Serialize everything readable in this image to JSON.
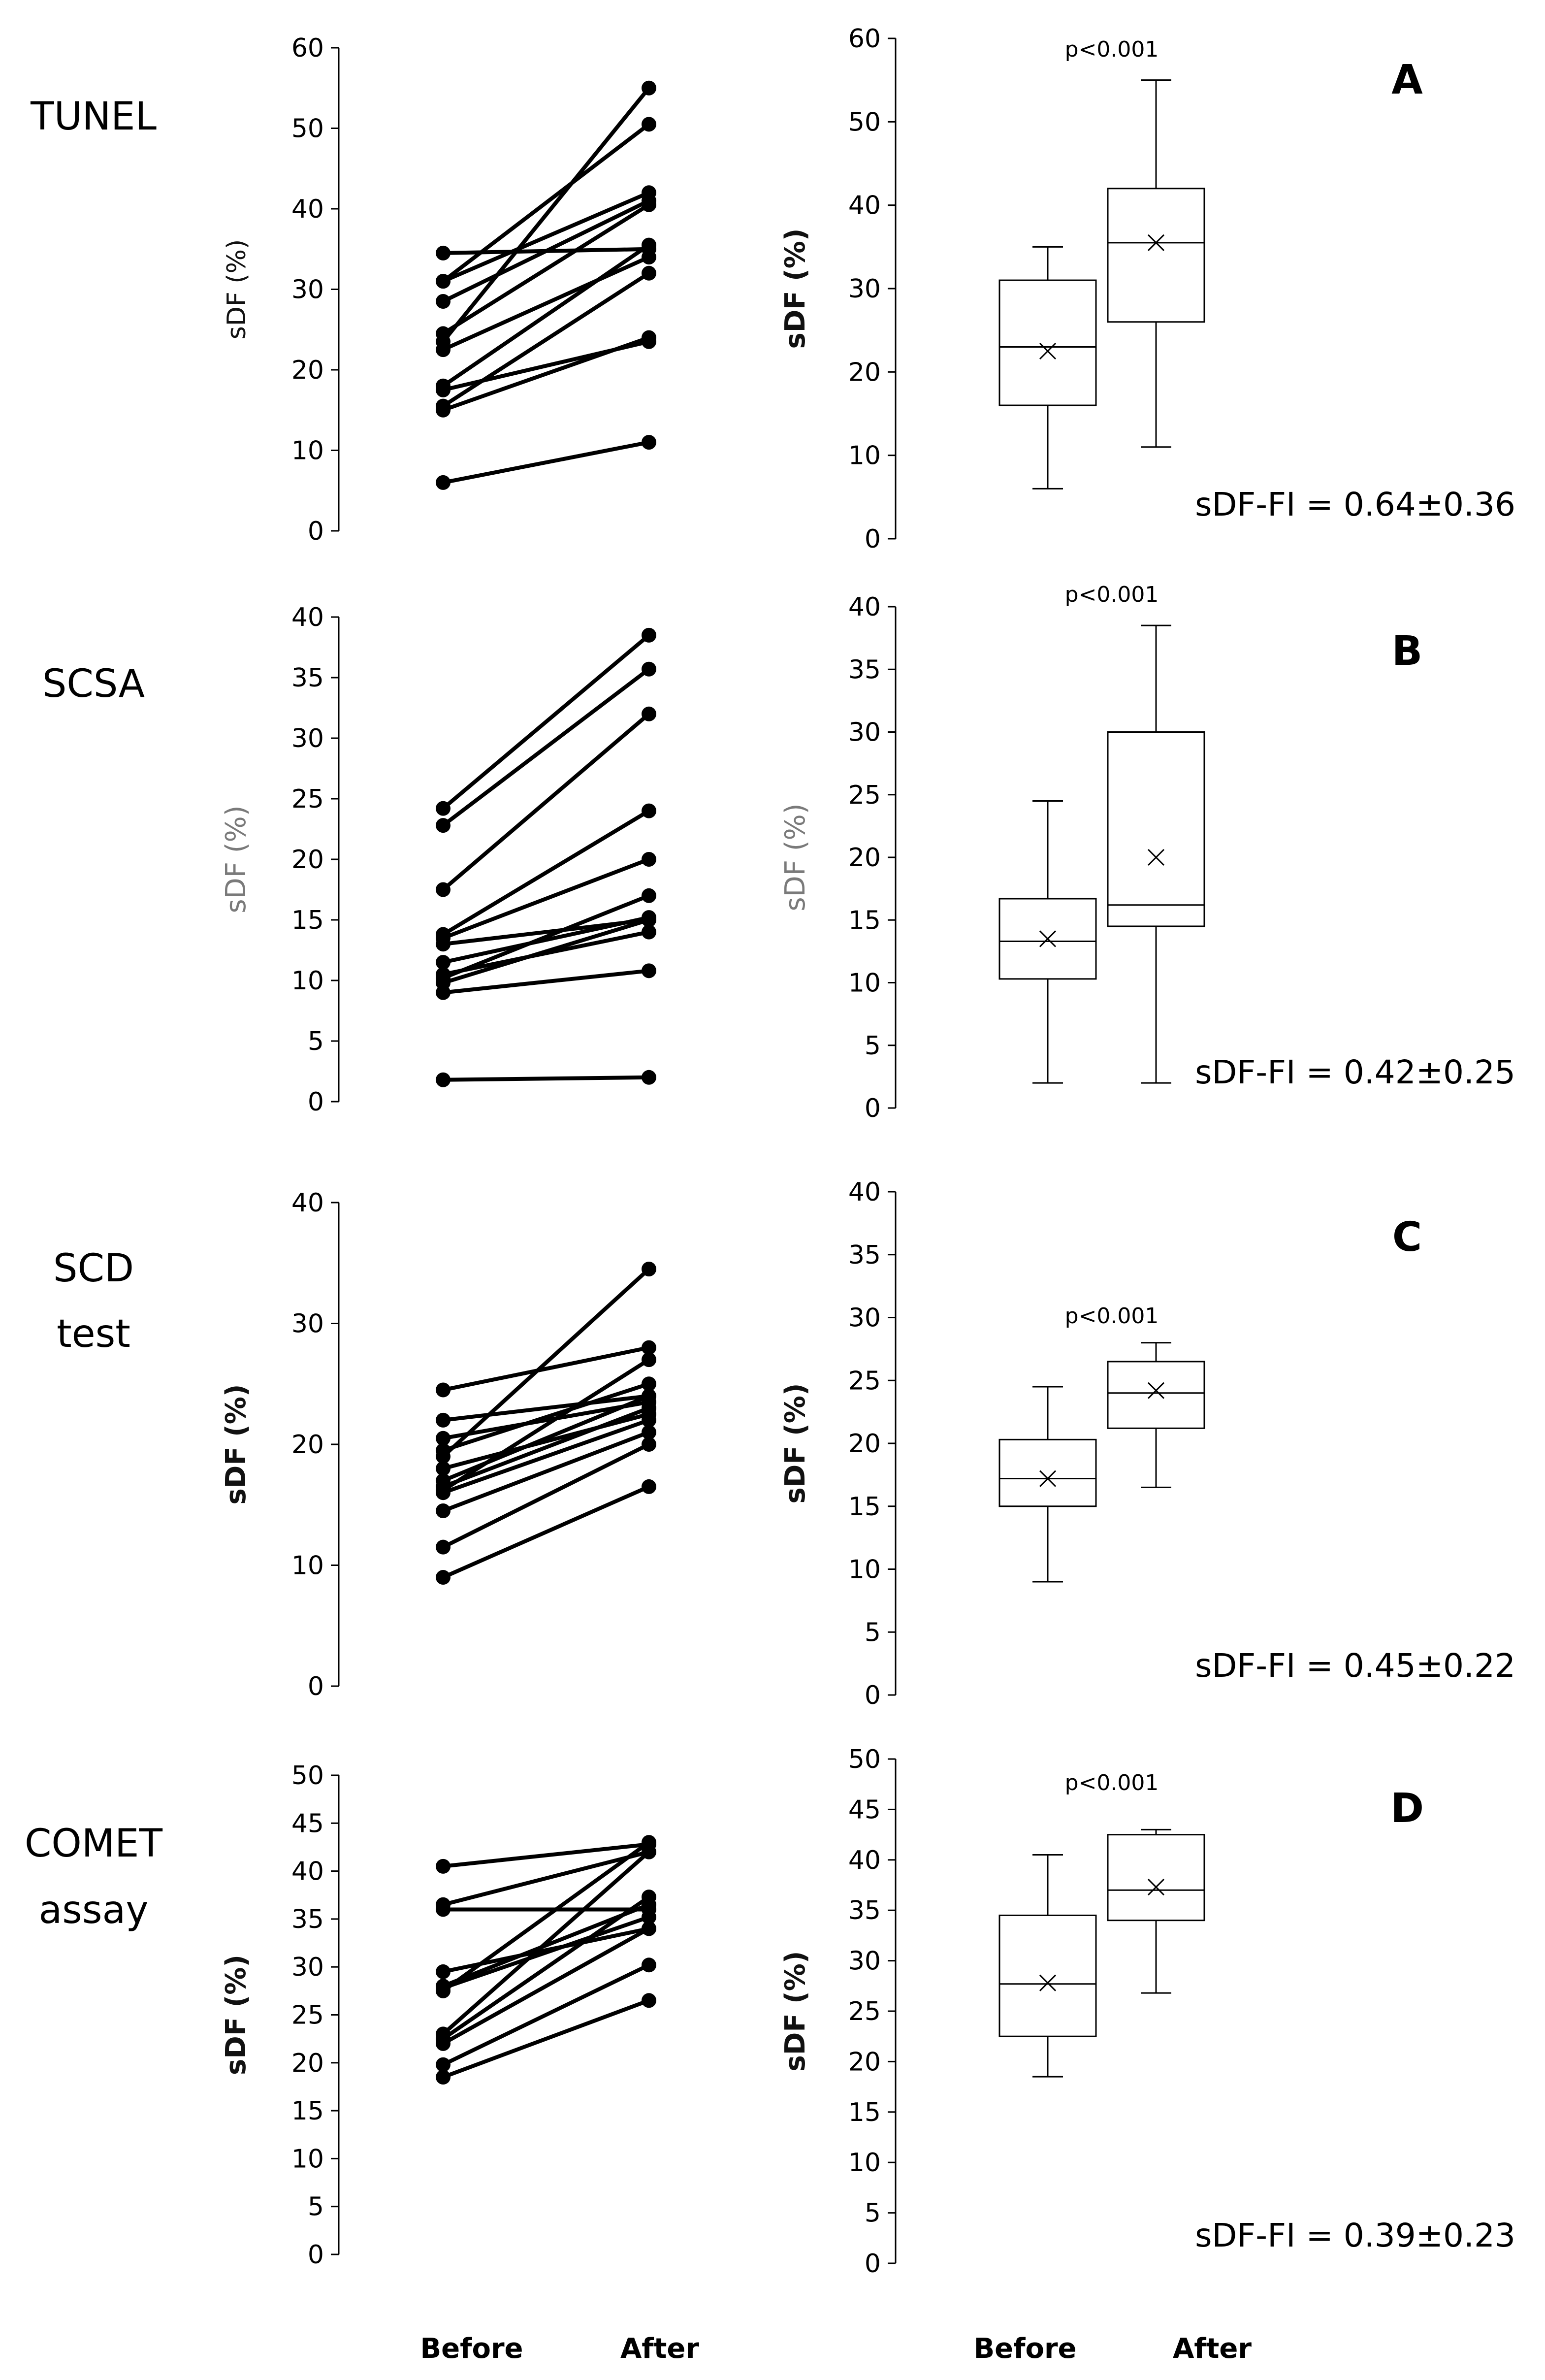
{
  "x_categories": [
    "Before",
    "After"
  ],
  "chart_data": [
    {
      "panel": "A",
      "row_label": [
        "TUNEL"
      ],
      "type": "line",
      "ylabel": "sDF (%)",
      "ylim": [
        0,
        60
      ],
      "yticks": [
        0,
        10,
        20,
        30,
        40,
        50,
        60
      ],
      "categories": [
        "Before",
        "After"
      ],
      "pairs": [
        [
          6,
          11
        ],
        [
          15,
          24
        ],
        [
          15.5,
          32
        ],
        [
          17.5,
          23.5
        ],
        [
          18,
          35.5
        ],
        [
          22.5,
          34
        ],
        [
          23.5,
          55
        ],
        [
          24.5,
          40.5
        ],
        [
          28.5,
          41
        ],
        [
          31,
          50.5
        ],
        [
          31,
          42
        ],
        [
          34.5,
          35
        ]
      ]
    },
    {
      "panel": "A",
      "type": "box",
      "title": "p<0.001",
      "annotation": "sDF-FI = 0.64±0.36",
      "ylabel": "sDF (%)",
      "ylim": [
        0,
        60
      ],
      "yticks": [
        0,
        10,
        20,
        30,
        40,
        50,
        60
      ],
      "categories": [
        "Before",
        "After"
      ],
      "boxes": [
        {
          "min": 6,
          "q1": 16,
          "median": 23,
          "q3": 31,
          "max": 35,
          "mean": 22.5
        },
        {
          "min": 11,
          "q1": 26,
          "median": 35.5,
          "q3": 42,
          "max": 55,
          "mean": 35.5
        }
      ]
    },
    {
      "panel": "B",
      "row_label": [
        "SCSA"
      ],
      "type": "line",
      "ylabel": "sDF (%)",
      "ylim": [
        0,
        40
      ],
      "yticks": [
        0,
        5,
        10,
        15,
        20,
        25,
        30,
        35,
        40
      ],
      "categories": [
        "Before",
        "After"
      ],
      "pairs": [
        [
          1.8,
          2
        ],
        [
          9,
          10.8
        ],
        [
          9.8,
          15
        ],
        [
          10.2,
          17
        ],
        [
          10.5,
          14
        ],
        [
          11.5,
          15.2
        ],
        [
          13,
          15
        ],
        [
          13.5,
          20
        ],
        [
          13.8,
          24
        ],
        [
          17.5,
          32
        ],
        [
          22.8,
          35.7
        ],
        [
          24.2,
          38.5
        ]
      ]
    },
    {
      "panel": "B",
      "type": "box",
      "title": "p<0.001",
      "annotation": "sDF-FI = 0.42±0.25",
      "ylabel": "sDF (%)",
      "ylim": [
        0,
        40
      ],
      "yticks": [
        0,
        5,
        10,
        15,
        20,
        25,
        30,
        35,
        40
      ],
      "categories": [
        "Before",
        "After"
      ],
      "boxes": [
        {
          "min": 2,
          "q1": 10.3,
          "median": 13.3,
          "q3": 16.7,
          "max": 24.5,
          "mean": 13.5
        },
        {
          "min": 2,
          "q1": 14.5,
          "median": 16.2,
          "q3": 30,
          "max": 38.5,
          "mean": 20
        }
      ]
    },
    {
      "panel": "C",
      "row_label": [
        "SCD",
        "test"
      ],
      "type": "line",
      "ylabel": "sDF (%)",
      "ylim": [
        0,
        40
      ],
      "yticks": [
        0,
        10,
        20,
        30,
        40
      ],
      "categories": [
        "Before",
        "After"
      ],
      "pairs": [
        [
          9,
          16.5
        ],
        [
          11.5,
          20
        ],
        [
          14.5,
          21
        ],
        [
          16,
          22
        ],
        [
          16.5,
          23
        ],
        [
          17,
          24
        ],
        [
          18,
          22.5
        ],
        [
          19.5,
          25
        ],
        [
          20.5,
          23.5
        ],
        [
          22,
          24
        ],
        [
          24.5,
          28
        ],
        [
          16.2,
          27
        ],
        [
          19,
          34.5
        ]
      ]
    },
    {
      "panel": "C",
      "type": "box",
      "title": "p<0.001",
      "annotation": "sDF-FI = 0.45±0.22",
      "ylabel": "sDF (%)",
      "ylim": [
        0,
        40
      ],
      "yticks": [
        0,
        5,
        10,
        15,
        20,
        25,
        30,
        35,
        40
      ],
      "categories": [
        "Before",
        "After"
      ],
      "boxes": [
        {
          "min": 9,
          "q1": 15,
          "median": 17.2,
          "q3": 20.3,
          "max": 24.5,
          "mean": 17.2
        },
        {
          "min": 16.5,
          "q1": 21.2,
          "median": 24,
          "q3": 26.5,
          "max": 28,
          "mean": 24.2
        }
      ]
    },
    {
      "panel": "D",
      "row_label": [
        "COMET",
        "assay"
      ],
      "type": "line",
      "ylabel": "sDF (%)",
      "ylim": [
        0,
        50
      ],
      "yticks": [
        0,
        5,
        10,
        15,
        20,
        25,
        30,
        35,
        40,
        45,
        50
      ],
      "categories": [
        "Before",
        "After"
      ],
      "pairs": [
        [
          18.5,
          26.5
        ],
        [
          19.8,
          30.2
        ],
        [
          22,
          34
        ],
        [
          23,
          42
        ],
        [
          27.8,
          35.2
        ],
        [
          28,
          36.5
        ],
        [
          29.5,
          34
        ],
        [
          36,
          36
        ],
        [
          36.5,
          42
        ],
        [
          40.5,
          42.8
        ],
        [
          22.5,
          37.3
        ],
        [
          27.5,
          43
        ]
      ]
    },
    {
      "panel": "D",
      "type": "box",
      "title": "p<0.001",
      "annotation": "sDF-FI = 0.39±0.23",
      "ylabel": "sDF (%)",
      "ylim": [
        0,
        50
      ],
      "yticks": [
        0,
        5,
        10,
        15,
        20,
        25,
        30,
        35,
        40,
        45,
        50
      ],
      "categories": [
        "Before",
        "After"
      ],
      "boxes": [
        {
          "min": 18.5,
          "q1": 22.5,
          "median": 27.7,
          "q3": 34.5,
          "max": 40.5,
          "mean": 27.8
        },
        {
          "min": 26.8,
          "q1": 34,
          "median": 37,
          "q3": 42.5,
          "max": 43,
          "mean": 37.3
        }
      ]
    }
  ]
}
